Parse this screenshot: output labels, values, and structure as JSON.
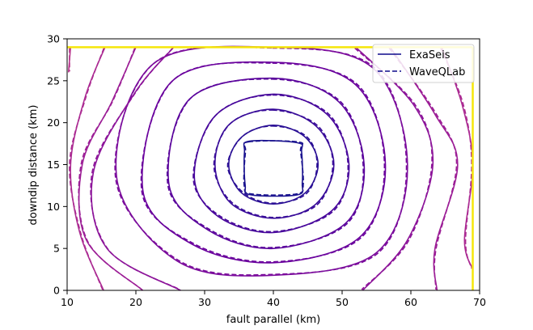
{
  "chart_data": {
    "type": "contour",
    "title": "",
    "xlabel": "fault parallel (km)",
    "ylabel": "downdip distance (km)",
    "xlim": [
      10,
      70
    ],
    "ylim": [
      0,
      30
    ],
    "xticks": [
      10,
      20,
      30,
      40,
      50,
      60,
      70
    ],
    "yticks": [
      0,
      5,
      10,
      15,
      20,
      25,
      30
    ],
    "grid": false,
    "legend": {
      "placement": "top-right",
      "entries": [
        {
          "label": "ExaSeis",
          "style": "solid"
        },
        {
          "label": "WaveQLab",
          "style": "dashed"
        }
      ]
    },
    "boundary": {
      "color": "#f5e60a",
      "x": [
        10,
        69
      ],
      "y": [
        0,
        29
      ]
    },
    "hypocenter": {
      "x": 40,
      "y": 15
    },
    "series": [
      {
        "name": "ExaSeis",
        "style": "solid"
      },
      {
        "name": "WaveQLab",
        "style": "dashed"
      }
    ],
    "contours": [
      {
        "color": "#1c1590",
        "ring": [
          [
            36.5,
            17.8
          ],
          [
            43.5,
            17.6
          ],
          [
            44.1,
            16.5
          ],
          [
            44.2,
            12.8
          ],
          [
            43.5,
            11.4
          ],
          [
            36.7,
            11.4
          ],
          [
            35.9,
            12.6
          ],
          [
            35.8,
            16.5
          ]
        ]
      },
      {
        "color": "#2a0f95",
        "ring": [
          [
            40,
            19.7
          ],
          [
            44.6,
            18.3
          ],
          [
            46.5,
            15
          ],
          [
            44.6,
            11.6
          ],
          [
            40,
            10.3
          ],
          [
            35.4,
            11.6
          ],
          [
            33.5,
            15
          ],
          [
            35.4,
            18.3
          ]
        ]
      },
      {
        "color": "#380b99",
        "ring": [
          [
            40,
            21.6
          ],
          [
            46.2,
            19.6
          ],
          [
            48.8,
            15
          ],
          [
            46.2,
            10.3
          ],
          [
            40,
            8.6
          ],
          [
            33.8,
            10.4
          ],
          [
            31.5,
            15
          ],
          [
            33.6,
            19.8
          ]
        ]
      },
      {
        "color": "#47069b",
        "ring": [
          [
            40,
            23.4
          ],
          [
            47.8,
            21
          ],
          [
            51,
            15
          ],
          [
            48.5,
            9.5
          ],
          [
            40,
            6.9
          ],
          [
            32,
            8.8
          ],
          [
            28.5,
            13.5
          ],
          [
            31.5,
            20.8
          ]
        ]
      },
      {
        "color": "#5a039c",
        "ring": [
          [
            40,
            25.3
          ],
          [
            49.5,
            22.5
          ],
          [
            53.2,
            15
          ],
          [
            50.5,
            8
          ],
          [
            40,
            5
          ],
          [
            30.5,
            7.2
          ],
          [
            24.8,
            12.7
          ],
          [
            27.8,
            22.8
          ]
        ]
      },
      {
        "color": "#6a029d",
        "ring": [
          [
            40,
            27.2
          ],
          [
            52,
            24.5
          ],
          [
            56.3,
            15
          ],
          [
            52.5,
            6.3
          ],
          [
            40,
            3.3
          ],
          [
            28.2,
            5.5
          ],
          [
            21,
            12
          ],
          [
            25.2,
            24.9
          ]
        ]
      },
      {
        "color": "#7b0c9c",
        "ring": [
          [
            40,
            29
          ],
          [
            54.5,
            26.5
          ],
          [
            59.5,
            15
          ],
          [
            55,
            4.5
          ],
          [
            40,
            1.8
          ],
          [
            26,
            3.5
          ],
          [
            17.2,
            13.5
          ],
          [
            22.5,
            27
          ]
        ]
      }
    ],
    "open_contours": [
      {
        "color": "#8d159a",
        "path": [
          [
            25.5,
            29
          ],
          [
            19.8,
            23.5
          ],
          [
            13.8,
            14
          ],
          [
            15.8,
            5
          ],
          [
            26.5,
            0
          ]
        ],
        "path2": [
          [
            52,
            29
          ],
          [
            60.5,
            22
          ],
          [
            63.2,
            15
          ],
          [
            59.5,
            6
          ],
          [
            53,
            0
          ]
        ]
      },
      {
        "color": "#9c1e96",
        "path": [
          [
            20,
            29
          ],
          [
            16.5,
            22.5
          ],
          [
            12.2,
            15
          ],
          [
            12.8,
            6
          ],
          [
            21,
            0
          ]
        ],
        "path2": [
          [
            57,
            29
          ],
          [
            63.5,
            21
          ],
          [
            66.8,
            15
          ],
          [
            63.5,
            5
          ],
          [
            63.8,
            0
          ]
        ]
      },
      {
        "color": "#ab2a92",
        "path": [
          [
            15.5,
            29
          ],
          [
            12.6,
            23
          ],
          [
            10.5,
            15
          ],
          [
            11.8,
            7
          ],
          [
            15.3,
            0
          ]
        ],
        "path2": [
          [
            64.5,
            29
          ],
          [
            67.5,
            22
          ],
          [
            69,
            15
          ],
          [
            67.8,
            6
          ],
          [
            69,
            2.5
          ]
        ]
      },
      {
        "color": "#b8348d",
        "path": [
          [
            10.5,
            29
          ],
          [
            10.2,
            26
          ]
        ],
        "path2": []
      }
    ]
  }
}
